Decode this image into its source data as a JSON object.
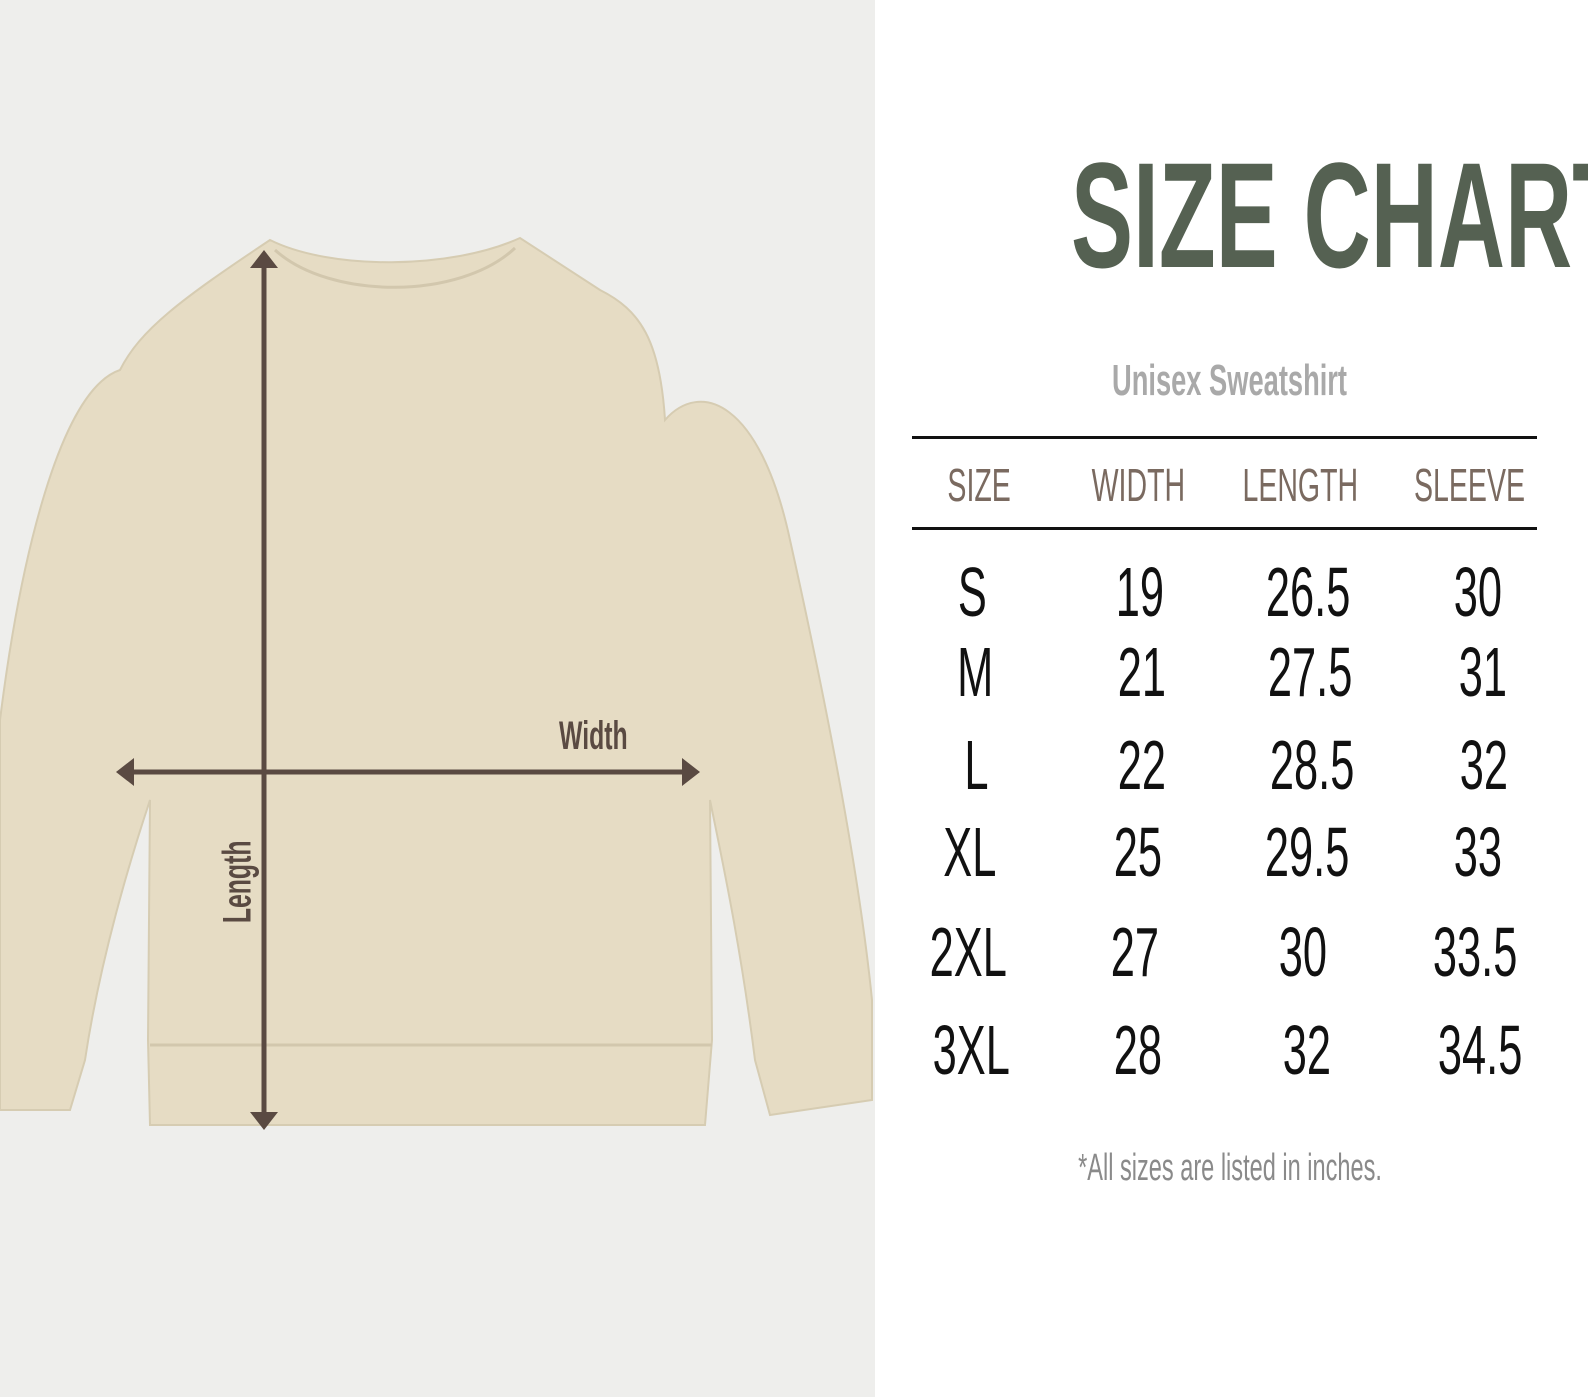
{
  "title": "SIZE CHART",
  "subtitle": "Unisex Sweatshirt",
  "columns": [
    "SIZE",
    "WIDTH",
    "LENGTH",
    "SLEEVE"
  ],
  "rows": [
    [
      "S",
      "19",
      "26.5",
      "30"
    ],
    [
      "M",
      "21",
      "27.5",
      "31"
    ],
    [
      "L",
      "22",
      "28.5",
      "32"
    ],
    [
      "XL",
      "25",
      "29.5",
      "33"
    ],
    [
      "2XL",
      "27",
      "30",
      "33.5"
    ],
    [
      "3XL",
      "28",
      "32",
      "34.5"
    ]
  ],
  "footnote": "*All sizes are listed in inches.",
  "diagram": {
    "width_label": "Width",
    "length_label": "Length"
  },
  "colors": {
    "title": "#556152",
    "header": "#7a6a60",
    "garment": "#e6dcc4",
    "arrow": "#5a4a42"
  }
}
